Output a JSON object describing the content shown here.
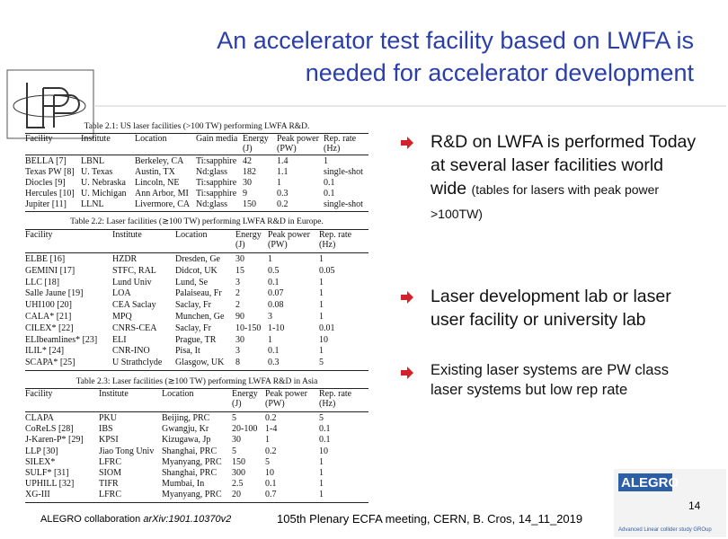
{
  "title": [
    "An accelerator test facility based on LWFA is",
    "needed for accelerator development"
  ],
  "tables": [
    {
      "caption": "Table 2.1: US laser facilities (>100 TW) performing LWFA R&D.",
      "headers": [
        "Facility",
        "Institute",
        "Location",
        "Gain media",
        "Energy (J)",
        "Peak power (PW)",
        "Rep. rate (Hz)"
      ],
      "rows": [
        [
          "BELLA [7]",
          "LBNL",
          "Berkeley, CA",
          "Ti:sapphire",
          "42",
          "1.4",
          "1"
        ],
        [
          "Texas PW [8]",
          "U. Texas",
          "Austin, TX",
          "Nd:glass",
          "182",
          "1.1",
          "single-shot"
        ],
        [
          "Diocles [9]",
          "U. Nebraska",
          "Lincoln, NE",
          "Ti:sapphire",
          "30",
          "1",
          "0.1"
        ],
        [
          "Hercules [10]",
          "U. Michigan",
          "Ann Arbor, MI",
          "Ti:sapphire",
          "9",
          "0.3",
          "0.1"
        ],
        [
          "Jupiter [11]",
          "LLNL",
          "Livermore, CA",
          "Nd:glass",
          "150",
          "0.2",
          "single-shot"
        ]
      ]
    },
    {
      "caption": "Table 2.2: Laser facilities (≳100 TW) performing LWFA R&D in Europe.",
      "headers": [
        "Facility",
        "Institute",
        "Location",
        "Energy (J)",
        "Peak power (PW)",
        "Rep. rate (Hz)"
      ],
      "rows": [
        [
          "ELBE [16]",
          "HZDR",
          "Dresden, Ge",
          "30",
          "1",
          "1"
        ],
        [
          "GEMINI [17]",
          "STFC, RAL",
          "Didcot, UK",
          "15",
          "0.5",
          "0.05"
        ],
        [
          "LLC [18]",
          "Lund Univ",
          "Lund, Se",
          "3",
          "0.1",
          "1"
        ],
        [
          "Salle Jaune [19]",
          "LOA",
          "Palaiseau, Fr",
          "2",
          "0.07",
          "1"
        ],
        [
          "UHI100 [20]",
          "CEA Saclay",
          "Saclay, Fr",
          "2",
          "0.08",
          "1"
        ],
        [
          "CALA* [21]",
          "MPQ",
          "Munchen, Ge",
          "90",
          "3",
          "1"
        ],
        [
          "CILEX* [22]",
          "CNRS-CEA",
          "Saclay, Fr",
          "10-150",
          "1-10",
          "0.01"
        ],
        [
          "ELIbeamlines* [23]",
          "ELI",
          "Prague, TR",
          "30",
          "1",
          "10"
        ],
        [
          "ILIL* [24]",
          "CNR-INO",
          "Pisa, It",
          "3",
          "0.1",
          "1"
        ],
        [
          "SCAPA* [25]",
          "U Strathclyde",
          "Glasgow, UK",
          "8",
          "0.3",
          "5"
        ]
      ]
    },
    {
      "caption": "Table 2.3: Laser facilities (≳100 TW) performing LWFA R&D in Asia",
      "headers": [
        "Facility",
        "Institute",
        "Location",
        "Energy (J)",
        "Peak power (PW)",
        "Rep. rate (Hz)"
      ],
      "rows": [
        [
          "CLAPA",
          "PKU",
          "Beijing, PRC",
          "5",
          "0.2",
          "5"
        ],
        [
          "CoReLS [28]",
          "IBS",
          "Gwangju, Kr",
          "20-100",
          "1-4",
          "0.1"
        ],
        [
          "J-Karen-P* [29]",
          "KPSI",
          "Kizugawa, Jp",
          "30",
          "1",
          "0.1"
        ],
        [
          "LLP [30]",
          "Jiao Tong Univ",
          "Shanghai, PRC",
          "5",
          "0.2",
          "10"
        ],
        [
          "SILEX*",
          "LFRC",
          "Myanyang, PRC",
          "150",
          "5",
          "1"
        ],
        [
          "SULF* [31]",
          "SIOM",
          "Shanghai, PRC",
          "300",
          "10",
          "1"
        ],
        [
          "UPHILL [32]",
          "TIFR",
          "Mumbai, In",
          "2.5",
          "0.1",
          "1"
        ],
        [
          "XG-III",
          "LFRC",
          "Myanyang, PRC",
          "20",
          "0.7",
          "1"
        ]
      ]
    }
  ],
  "bullets": [
    [
      "R&D on LWFA is performed Today at several laser facilities world wide",
      "(tables for lasers with peak power >100TW)"
    ],
    [
      "Laser development lab or laser user facility or university lab"
    ],
    [
      "Existing laser systems are PW class laser systems but low rep rate"
    ]
  ],
  "footer": {
    "source": "ALEGRO collaboration",
    "arxiv": "arXiv:1901.10370v2",
    "meeting": "105th Plenary ECFA meeting, CERN, B. Cros, 14_11_2019",
    "page": "14"
  },
  "logo": {
    "name": "ALEGRO",
    "tagline": "Advanced Linear collider study GROup"
  }
}
